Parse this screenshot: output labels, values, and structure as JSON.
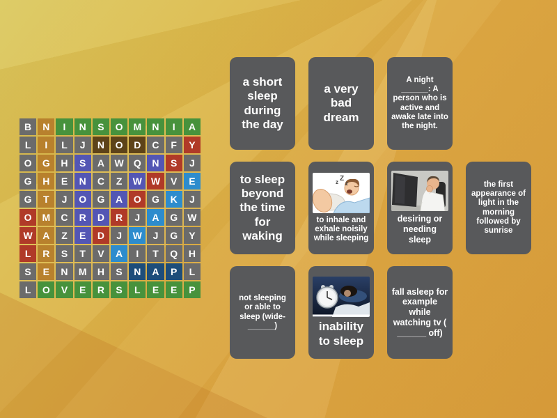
{
  "game": {
    "type": "wordsearch",
    "grid": {
      "letters": [
        [
          "B",
          "N",
          "I",
          "N",
          "S",
          "O",
          "M",
          "N",
          "I",
          "A"
        ],
        [
          "L",
          "I",
          "L",
          "J",
          "N",
          "O",
          "D",
          "C",
          "F",
          "Y"
        ],
        [
          "O",
          "G",
          "H",
          "S",
          "A",
          "W",
          "Q",
          "N",
          "S",
          "J"
        ],
        [
          "G",
          "H",
          "E",
          "N",
          "C",
          "Z",
          "W",
          "W",
          "V",
          "E"
        ],
        [
          "G",
          "T",
          "J",
          "O",
          "G",
          "A",
          "O",
          "G",
          "K",
          "J"
        ],
        [
          "O",
          "M",
          "C",
          "R",
          "D",
          "R",
          "J",
          "A",
          "G",
          "W"
        ],
        [
          "W",
          "A",
          "Z",
          "E",
          "D",
          "J",
          "W",
          "J",
          "G",
          "Y"
        ],
        [
          "L",
          "R",
          "S",
          "T",
          "V",
          "A",
          "I",
          "T",
          "Q",
          "H"
        ],
        [
          "S",
          "E",
          "N",
          "M",
          "H",
          "S",
          "N",
          "A",
          "P",
          "L"
        ],
        [
          "L",
          "O",
          "V",
          "E",
          "R",
          "S",
          "L",
          "E",
          "E",
          "P"
        ]
      ],
      "cell_colors": [
        [
          "gray",
          "tan",
          "green",
          "green",
          "green",
          "green",
          "green",
          "green",
          "green",
          "green"
        ],
        [
          "gray",
          "tan",
          "gray",
          "gray",
          "brown",
          "brown",
          "brown",
          "gray",
          "gray",
          "red"
        ],
        [
          "gray",
          "tan",
          "gray",
          "indigo",
          "gray",
          "gray",
          "gray",
          "indigo",
          "red",
          "gray"
        ],
        [
          "gray",
          "tan",
          "gray",
          "indigo",
          "gray",
          "gray",
          "indigo",
          "red",
          "gray",
          "blue"
        ],
        [
          "gray",
          "tan",
          "gray",
          "indigo",
          "gray",
          "indigo",
          "red",
          "gray",
          "blue",
          "gray"
        ],
        [
          "red",
          "tan",
          "gray",
          "indigo",
          "indigo",
          "red",
          "gray",
          "blue",
          "gray",
          "gray"
        ],
        [
          "red",
          "tan",
          "gray",
          "indigo",
          "red",
          "gray",
          "blue",
          "gray",
          "gray",
          "gray"
        ],
        [
          "red",
          "tan",
          "gray",
          "gray",
          "gray",
          "blue",
          "gray",
          "gray",
          "gray",
          "gray"
        ],
        [
          "gray",
          "tan",
          "gray",
          "gray",
          "gray",
          "gray",
          "navy",
          "navy",
          "navy",
          "gray"
        ],
        [
          "gray",
          "green",
          "green",
          "green",
          "green",
          "green",
          "green",
          "green",
          "green",
          "green"
        ]
      ],
      "palette": {
        "gray": "#6b6b6b",
        "tan": "#b8812d",
        "green": "#47923c",
        "brown": "#5d4319",
        "indigo": "#5356b4",
        "red": "#b03a28",
        "blue": "#2d8ccd",
        "navy": "#1d4d7a"
      },
      "found_words": [
        {
          "word": "INSOMNIA",
          "color": "green"
        },
        {
          "word": "NIGHTMARE",
          "color": "tan"
        },
        {
          "word": "NOD",
          "color": "brown"
        },
        {
          "word": "SNORE",
          "color": "indigo"
        },
        {
          "word": "DAWN",
          "color": "indigo"
        },
        {
          "word": "DROWSY",
          "color": "red"
        },
        {
          "word": "OWL",
          "color": "red"
        },
        {
          "word": "AWAKE",
          "color": "blue"
        },
        {
          "word": "NAP",
          "color": "navy"
        },
        {
          "word": "OVERSLEEP",
          "color": "green"
        }
      ]
    },
    "clues": {
      "rows": [
        3,
        4,
        3
      ],
      "cards": [
        {
          "text": "a short sleep during the day",
          "image": null,
          "size": "lg"
        },
        {
          "text": "a very bad dream",
          "image": null,
          "size": "lg"
        },
        {
          "text": "A night ______: A person who is active and awake late into the night.",
          "image": null,
          "size": "sm"
        },
        {
          "text": "to sleep beyond the time for waking",
          "image": null,
          "size": "lg"
        },
        {
          "text": "to inhale and exhale noisily while sleeping",
          "image": "snoring-cartoon",
          "size": "sm"
        },
        {
          "text": "desiring or needing sleep",
          "image": "yawning-man-photo",
          "size": "md"
        },
        {
          "text": "the first appearance of light in the morning followed by sunrise",
          "image": null,
          "size": "sm"
        },
        {
          "text": "not sleeping or able to sleep (wide-______)",
          "image": null,
          "size": "sm"
        },
        {
          "text": "inability to sleep",
          "image": "sleepless-night-photo",
          "size": "lg"
        },
        {
          "text": "fall asleep for example while watching tv ( ______ off)",
          "image": "",
          "size": "md"
        }
      ]
    },
    "colors": {
      "card_bg": "#58595b",
      "card_text": "#ffffff",
      "bg_top_left": "#dbc95e",
      "bg_bottom_right": "#d89c3a"
    }
  }
}
